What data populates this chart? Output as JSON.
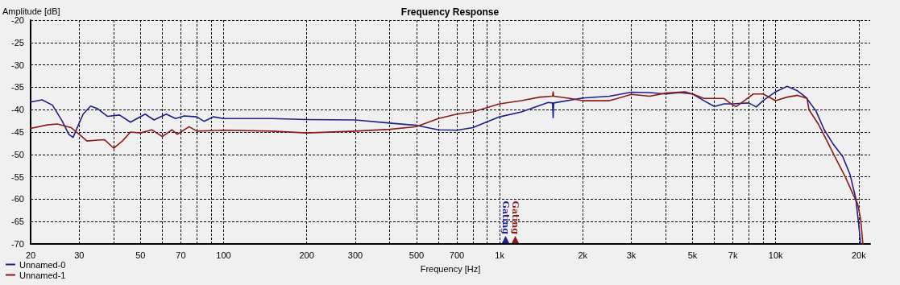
{
  "chart_data": {
    "type": "line",
    "title": "Frequency Response",
    "xlabel": "Frequency [Hz]",
    "ylabel": "Amplitude [dB]",
    "log": "x",
    "xlim": [
      20,
      22000
    ],
    "ylim": [
      -70,
      -20
    ],
    "xticks": [
      20,
      30,
      {
        "value": 40,
        "label": null
      },
      50,
      {
        "value": 60,
        "label": null
      },
      70,
      {
        "value": 80,
        "label": null
      },
      {
        "value": 90,
        "label": null
      },
      100,
      200,
      300,
      {
        "value": 400,
        "label": null
      },
      500,
      {
        "value": 600,
        "label": null
      },
      700,
      {
        "value": 800,
        "label": null
      },
      {
        "value": 900,
        "label": null
      },
      {
        "value": 1000,
        "label": "1k"
      },
      {
        "value": 2000,
        "label": "2k"
      },
      {
        "value": 3000,
        "label": "3k"
      },
      {
        "value": 4000,
        "label": null
      },
      {
        "value": 5000,
        "label": "5k"
      },
      {
        "value": 6000,
        "label": null
      },
      {
        "value": 7000,
        "label": "7k"
      },
      {
        "value": 8000,
        "label": null
      },
      {
        "value": 9000,
        "label": null
      },
      {
        "value": 10000,
        "label": "10k"
      },
      {
        "value": 20000,
        "label": "20k"
      }
    ],
    "yticks": [
      -70,
      -65,
      -60,
      -55,
      -50,
      -45,
      -40,
      -35,
      -30,
      -25,
      -20
    ],
    "grid": true,
    "legend": "bottom left",
    "marker": "none",
    "line_style": "solid",
    "annotations": [
      "Gating",
      "Gating"
    ],
    "series": [
      {
        "name": "Unnamed-0",
        "color": "#1f1f8c",
        "x": [
          20,
          22,
          24,
          26,
          27.5,
          28.5,
          30,
          31,
          33,
          35,
          38,
          42,
          46,
          52,
          56,
          62,
          67,
          72,
          80,
          85,
          92,
          100,
          150,
          200,
          300,
          400,
          500,
          600,
          700,
          800,
          1000,
          1200,
          1500,
          1555,
          1563,
          1570,
          2000,
          2500,
          3000,
          3500,
          4000,
          4500,
          5000,
          5500,
          6000,
          6500,
          7000,
          8000,
          8500,
          9000,
          10000,
          11000,
          12000,
          12900,
          14000,
          15000,
          16200,
          17500,
          18600,
          19500,
          20000,
          20300
        ],
        "values": [
          -38.3,
          -37.8,
          -39,
          -42.5,
          -45.5,
          -46.2,
          -43,
          -41,
          -39.2,
          -39.8,
          -41.5,
          -41.2,
          -42.8,
          -41,
          -42.3,
          -41,
          -42,
          -41.4,
          -41.6,
          -42.6,
          -41.6,
          -42,
          -42,
          -42.2,
          -42.3,
          -43,
          -43.5,
          -44.5,
          -44.6,
          -44,
          -41.6,
          -40.5,
          -38.4,
          -38.5,
          -41.8,
          -38.5,
          -37.4,
          -37,
          -36.1,
          -36.2,
          -36.5,
          -36.2,
          -36.5,
          -38,
          -39.3,
          -38.7,
          -38.7,
          -38.5,
          -39.4,
          -38,
          -36,
          -34.8,
          -35.8,
          -37.3,
          -40.3,
          -44.5,
          -47.8,
          -50.5,
          -54.5,
          -59.8,
          -65.7,
          -70
        ]
      },
      {
        "name": "Unnamed-1",
        "color": "#8c1a1a",
        "x": [
          20,
          23,
          25,
          28,
          30,
          32,
          35,
          37,
          40,
          43,
          46,
          50,
          55,
          60,
          65,
          68,
          75,
          80,
          100,
          150,
          200,
          300,
          400,
          500,
          600,
          700,
          800,
          1000,
          1200,
          1400,
          1555,
          1563,
          1570,
          1800,
          2000,
          2500,
          3000,
          3500,
          4000,
          4700,
          5000,
          5500,
          6500,
          7000,
          7200,
          7700,
          8300,
          9000,
          10000,
          11000,
          12000,
          13000,
          13200,
          14300,
          15400,
          16600,
          17900,
          19100,
          19800,
          20300,
          20700
        ],
        "values": [
          -44.2,
          -43.4,
          -43.2,
          -44,
          -45.5,
          -47,
          -46.8,
          -46.7,
          -48.6,
          -47,
          -45,
          -45.2,
          -44.5,
          -46,
          -44.5,
          -45.5,
          -43.8,
          -44.8,
          -44.6,
          -44.8,
          -45.2,
          -44.8,
          -44.4,
          -43.8,
          -42,
          -41,
          -40.5,
          -38.7,
          -38,
          -37.2,
          -37,
          -36,
          -37,
          -37.5,
          -38,
          -38,
          -36.6,
          -37,
          -36.3,
          -36,
          -36.5,
          -37.5,
          -37.5,
          -39,
          -39.3,
          -38,
          -36.5,
          -36.5,
          -38,
          -37.2,
          -36.8,
          -37.5,
          -40,
          -43.3,
          -47.2,
          -51.2,
          -55.1,
          -59,
          -61,
          -64.3,
          -70
        ]
      }
    ]
  }
}
